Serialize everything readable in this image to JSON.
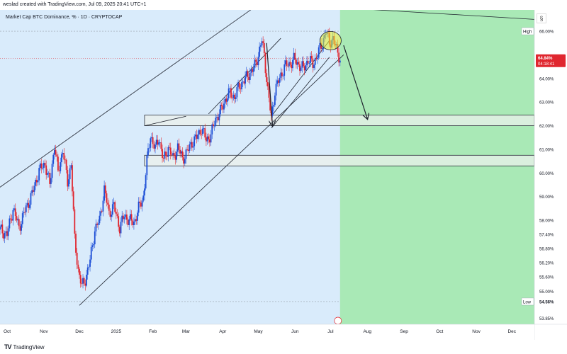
{
  "header": {
    "attribution": "weslad created with TradingView.com, Jul 09, 2025 20:41 UTC+1"
  },
  "footer": {
    "brand_mark": "TV",
    "brand": "TradingView"
  },
  "settings_icon": "§",
  "chart_data": {
    "type": "candlestick",
    "title": "Market Cap BTC Dominance, % · 1D · CRYPTOCAP",
    "y_ticks": [
      "66.00%",
      "64.00%",
      "63.00%",
      "62.00%",
      "61.00%",
      "60.00%",
      "59.00%",
      "58.00%",
      "57.40%",
      "56.80%",
      "56.20%",
      "55.60%",
      "55.00%",
      "53.85%"
    ],
    "y_range": [
      53.6,
      66.9
    ],
    "x_ticks": [
      "Oct",
      "Nov",
      "Dec",
      "2025",
      "Feb",
      "Mar",
      "Apr",
      "May",
      "Jun",
      "Jul",
      "Aug",
      "Sep",
      "Oct",
      "Nov",
      "Dec"
    ],
    "x_dates": [
      "2024-10-01",
      "2024-11-01",
      "2024-12-01",
      "2025-01-01",
      "2025-02-01",
      "2025-03-01",
      "2025-04-01",
      "2025-05-01",
      "2025-06-01",
      "2025-07-01",
      "2025-08-01",
      "2025-09-01",
      "2025-10-01",
      "2025-11-01",
      "2025-12-01"
    ],
    "x_range": [
      "2024-09-25",
      "2025-12-20"
    ],
    "high_label": "High",
    "high_value": 66.0,
    "low_label": "Low",
    "low_value": 54.56,
    "low_badge": "54.56%",
    "current_price": 64.84,
    "current_badge": "64.84%",
    "countdown": "04:18:41",
    "zones": [
      {
        "name": "upper-zone",
        "from": 62.0,
        "to": 62.45,
        "start": "2025-01-25",
        "end": "2025-12-20"
      },
      {
        "name": "lower-zone",
        "from": 60.3,
        "to": 60.75,
        "start": "2025-01-25",
        "end": "2025-12-20"
      }
    ],
    "forecast_zone_start": "2025-07-09",
    "trendlines": [
      {
        "name": "outer-channel-upper",
        "p1": [
          "2024-09-25",
          59.4
        ],
        "p2": [
          "2025-05-03",
          67.2
        ]
      },
      {
        "name": "outer-channel-mid",
        "p1": [
          "2024-12-01",
          54.4
        ],
        "p2": [
          "2025-07-12",
          65.0
        ]
      },
      {
        "name": "top-resistance",
        "p1": [
          "2025-05-03",
          67.2
        ],
        "p2": [
          "2025-12-20",
          66.5
        ]
      },
      {
        "name": "neck-line",
        "p1": [
          "2025-01-25",
          62.0
        ],
        "p2": [
          "2025-03-01",
          62.4
        ]
      },
      {
        "name": "lower-wedge-upper",
        "p1": [
          "2025-05-12",
          62.4
        ],
        "p2": [
          "2025-06-30",
          65.6
        ]
      },
      {
        "name": "lower-wedge-lower",
        "p1": [
          "2025-05-12",
          61.9
        ],
        "p2": [
          "2025-06-30",
          64.9
        ]
      },
      {
        "name": "mid-channel-upper",
        "p1": [
          "2025-03-20",
          62.5
        ],
        "p2": [
          "2025-05-20",
          65.7
        ]
      }
    ],
    "arrows": [
      {
        "name": "past-drop-arrow",
        "from": [
          "2025-05-08",
          65.5
        ],
        "to": [
          "2025-05-13",
          62.0
        ]
      },
      {
        "name": "forecast-arrow",
        "from": [
          "2025-07-12",
          65.4
        ],
        "to": [
          "2025-08-01",
          62.3
        ]
      }
    ],
    "circle_center": [
      "2025-07-01",
      65.6
    ],
    "price_path": [
      [
        "2024-09-25",
        57.6
      ],
      [
        "2024-10-01",
        57.4
      ],
      [
        "2024-10-06",
        58.5
      ],
      [
        "2024-10-11",
        57.7
      ],
      [
        "2024-10-16",
        58.4
      ],
      [
        "2024-10-22",
        59.1
      ],
      [
        "2024-10-28",
        60.1
      ],
      [
        "2024-11-02",
        60.4
      ],
      [
        "2024-11-06",
        59.5
      ],
      [
        "2024-11-10",
        61.2
      ],
      [
        "2024-11-13",
        60.0
      ],
      [
        "2024-11-17",
        61.0
      ],
      [
        "2024-11-21",
        59.6
      ],
      [
        "2024-11-24",
        60.4
      ],
      [
        "2024-11-27",
        57.2
      ],
      [
        "2024-11-30",
        55.9
      ],
      [
        "2024-12-03",
        55.2
      ],
      [
        "2024-12-06",
        55.5
      ],
      [
        "2024-12-10",
        56.3
      ],
      [
        "2024-12-14",
        57.6
      ],
      [
        "2024-12-18",
        58.0
      ],
      [
        "2024-12-22",
        59.3
      ],
      [
        "2024-12-26",
        58.3
      ],
      [
        "2024-12-30",
        58.6
      ],
      [
        "2025-01-04",
        57.7
      ],
      [
        "2025-01-08",
        58.2
      ],
      [
        "2025-01-12",
        58.0
      ],
      [
        "2025-01-16",
        57.9
      ],
      [
        "2025-01-20",
        58.5
      ],
      [
        "2025-01-24",
        59.0
      ],
      [
        "2025-01-27",
        60.5
      ],
      [
        "2025-01-30",
        61.6
      ],
      [
        "2025-02-03",
        61.0
      ],
      [
        "2025-02-06",
        61.5
      ],
      [
        "2025-02-10",
        60.5
      ],
      [
        "2025-02-14",
        61.1
      ],
      [
        "2025-02-18",
        60.6
      ],
      [
        "2025-02-22",
        61.1
      ],
      [
        "2025-02-26",
        60.6
      ],
      [
        "2025-03-02",
        60.9
      ],
      [
        "2025-03-06",
        61.3
      ],
      [
        "2025-03-10",
        61.5
      ],
      [
        "2025-03-14",
        61.9
      ],
      [
        "2025-03-18",
        61.4
      ],
      [
        "2025-03-22",
        61.6
      ],
      [
        "2025-03-26",
        62.3
      ],
      [
        "2025-03-30",
        62.6
      ],
      [
        "2025-04-03",
        63.1
      ],
      [
        "2025-04-07",
        63.4
      ],
      [
        "2025-04-11",
        63.2
      ],
      [
        "2025-04-15",
        63.7
      ],
      [
        "2025-04-19",
        63.9
      ],
      [
        "2025-04-23",
        64.2
      ],
      [
        "2025-04-27",
        64.4
      ],
      [
        "2025-05-01",
        65.0
      ],
      [
        "2025-05-04",
        65.6
      ],
      [
        "2025-05-06",
        65.0
      ],
      [
        "2025-05-09",
        63.5
      ],
      [
        "2025-05-12",
        62.3
      ],
      [
        "2025-05-15",
        63.5
      ],
      [
        "2025-05-19",
        64.0
      ],
      [
        "2025-05-23",
        64.5
      ],
      [
        "2025-05-27",
        64.6
      ],
      [
        "2025-05-31",
        64.8
      ],
      [
        "2025-06-04",
        64.6
      ],
      [
        "2025-06-08",
        64.4
      ],
      [
        "2025-06-12",
        64.8
      ],
      [
        "2025-06-16",
        64.6
      ],
      [
        "2025-06-20",
        65.0
      ],
      [
        "2025-06-24",
        65.5
      ],
      [
        "2025-06-27",
        66.0
      ],
      [
        "2025-06-30",
        65.5
      ],
      [
        "2025-07-03",
        65.7
      ],
      [
        "2025-07-06",
        65.2
      ],
      [
        "2025-07-09",
        64.84
      ]
    ]
  }
}
